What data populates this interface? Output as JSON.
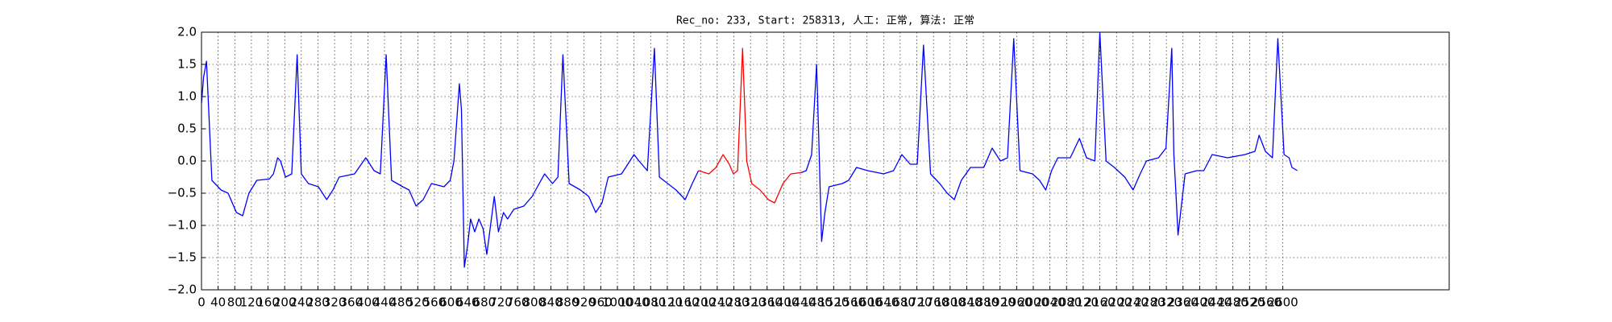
{
  "chart_data": {
    "type": "line",
    "title": "Rec_no: 233, Start: 258313, 人工: 正常, 算法: 正常",
    "xlim": [
      0,
      3000
    ],
    "xticks": [
      0,
      40,
      80,
      120,
      160,
      200,
      240,
      280,
      320,
      360,
      400,
      440,
      480,
      520,
      560,
      600,
      640,
      680,
      720,
      760,
      800,
      840,
      880,
      920,
      960,
      1000,
      1040,
      1080,
      1120,
      1160,
      1200,
      1240,
      1280,
      1320,
      1360,
      1400,
      1440,
      1480,
      1520,
      1560,
      1600,
      1640,
      1680,
      1720,
      1760,
      1800,
      1840,
      1880,
      1920,
      1960,
      2000,
      2040,
      2080,
      2120,
      2160,
      2200,
      2240,
      2280,
      2320,
      2360,
      2400,
      2440,
      2480,
      2520,
      2560,
      2600
    ],
    "ylim": [
      -2,
      2
    ],
    "yticks": [
      {
        "value": -2,
        "label": "−2.0"
      },
      {
        "value": -1.5,
        "label": "−1.5"
      },
      {
        "value": -1,
        "label": "−1.0"
      },
      {
        "value": -0.5,
        "label": "−0.5"
      },
      {
        "value": 0,
        "label": "0.0"
      },
      0.5,
      {
        "value": 1,
        "label": "1.0"
      },
      1.5,
      {
        "value": 2,
        "label": "2.0"
      }
    ],
    "grid": true,
    "series": [
      {
        "color": "#0000ff",
        "x": [
          0,
          5,
          12,
          25,
          47,
          64,
          84,
          99,
          114,
          133,
          163,
          173,
          183,
          190,
          202,
          217,
          230,
          240,
          257,
          281,
          301,
          316,
          331,
          368,
          395,
          415,
          430,
          444,
          457,
          484,
          499,
          516,
          533,
          553,
          583,
          598,
          607,
          620,
          625,
          632,
          640,
          647,
          657,
          667,
          677,
          686,
          704,
          714,
          726,
          736,
          751,
          775,
          795,
          812,
          825,
          844,
          857,
          869,
          884,
          911,
          931,
          948,
          963,
          978,
          1010,
          1040,
          1052,
          1072,
          1089,
          1101,
          1121,
          1141,
          1163,
          1180,
          1195,
          null,
          1442,
          1454,
          1467,
          1479,
          1484,
          1491,
          1499,
          1509,
          1541,
          1556,
          1575,
          1602,
          1640,
          1664,
          1684,
          1704,
          1721,
          1736,
          1753,
          1775,
          1793,
          1810,
          1827,
          1849,
          1881,
          1901,
          1921,
          1938,
          1953,
          1968,
          1998,
          2015,
          2030,
          2044,
          2059,
          2089,
          2111,
          2128,
          2148,
          2160,
          2175,
          2195,
          2220,
          2240,
          2257,
          2272,
          2301,
          2319,
          2333,
          2338,
          2343,
          2348,
          2356,
          2365,
          2393,
          2410,
          2430,
          2467,
          2509,
          2533,
          2543,
          2558,
          2575,
          2588,
          2603,
          2615,
          2622,
          2635
        ],
        "values": [
          0.9,
          1.3,
          1.55,
          -0.3,
          -0.45,
          -0.5,
          -0.8,
          -0.85,
          -0.5,
          -0.3,
          -0.28,
          -0.2,
          0.05,
          0.0,
          -0.25,
          -0.2,
          1.65,
          -0.2,
          -0.35,
          -0.4,
          -0.6,
          -0.45,
          -0.25,
          -0.2,
          0.05,
          -0.15,
          -0.2,
          1.65,
          -0.3,
          -0.4,
          -0.45,
          -0.7,
          -0.6,
          -0.35,
          -0.4,
          -0.3,
          0.0,
          1.2,
          0.8,
          -1.65,
          -1.3,
          -0.9,
          -1.1,
          -0.9,
          -1.05,
          -1.45,
          -0.55,
          -1.1,
          -0.8,
          -0.9,
          -0.75,
          -0.7,
          -0.55,
          -0.35,
          -0.2,
          -0.35,
          -0.25,
          1.65,
          -0.35,
          -0.45,
          -0.55,
          -0.8,
          -0.65,
          -0.25,
          -0.2,
          0.1,
          0.0,
          -0.15,
          1.75,
          -0.25,
          -0.35,
          -0.45,
          -0.6,
          -0.35,
          -0.15,
          null,
          -0.18,
          -0.15,
          0.1,
          1.5,
          0.4,
          -1.25,
          -0.8,
          -0.4,
          -0.35,
          -0.3,
          -0.1,
          -0.15,
          -0.2,
          -0.15,
          0.1,
          -0.05,
          -0.05,
          1.8,
          -0.2,
          -0.35,
          -0.5,
          -0.6,
          -0.3,
          -0.1,
          -0.1,
          0.2,
          0.0,
          0.05,
          1.9,
          -0.15,
          -0.2,
          -0.3,
          -0.45,
          -0.15,
          0.05,
          0.05,
          0.35,
          0.05,
          0.0,
          2.0,
          0.0,
          -0.1,
          -0.25,
          -0.45,
          -0.2,
          0.0,
          0.05,
          0.2,
          1.75,
          0.1,
          -0.5,
          -1.15,
          -0.7,
          -0.2,
          -0.15,
          -0.15,
          0.1,
          0.05,
          0.1,
          0.15,
          0.4,
          0.15,
          0.05,
          1.9,
          0.1,
          0.05,
          -0.1,
          -0.15
        ]
      },
      {
        "color": "#ff0000",
        "x": [
          1195,
          1220,
          1237,
          1254,
          1269,
          1279,
          1289,
          1301,
          1311,
          1323,
          1343,
          1363,
          1378,
          1398,
          1417,
          1442
        ],
        "values": [
          -0.15,
          -0.2,
          -0.1,
          0.1,
          -0.05,
          -0.2,
          -0.15,
          1.75,
          0.0,
          -0.35,
          -0.45,
          -0.6,
          -0.65,
          -0.35,
          -0.2,
          -0.18
        ]
      }
    ]
  }
}
